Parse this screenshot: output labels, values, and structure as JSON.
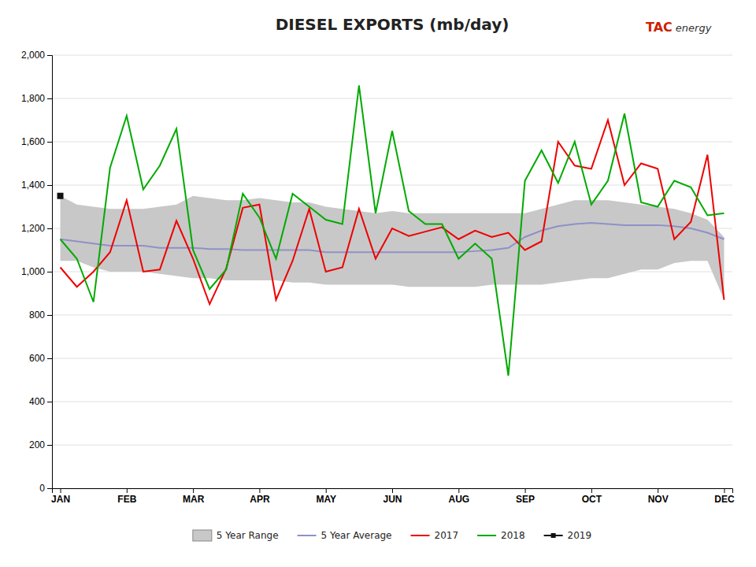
{
  "chart_data": {
    "type": "line",
    "title": "DIESEL EXPORTS (mb/day)",
    "annotations": [
      {
        "text": "TAC",
        "color": "#cc2200"
      },
      {
        "text": "energy",
        "color": "#333333"
      }
    ],
    "categories": [
      "JAN",
      null,
      null,
      null,
      "FEB",
      null,
      null,
      null,
      "MAR",
      null,
      null,
      null,
      "APR",
      null,
      null,
      null,
      "MAY",
      null,
      null,
      null,
      "JUN",
      null,
      null,
      null,
      "AUG",
      null,
      null,
      null,
      "SEP",
      null,
      null,
      null,
      "OCT",
      null,
      null,
      null,
      "NOV",
      null,
      null,
      null,
      "DEC"
    ],
    "ylim": [
      0,
      2000
    ],
    "yticks": [
      0,
      200,
      400,
      600,
      800,
      {
        "value": 1000,
        "label": "1,000"
      },
      {
        "value": 1200,
        "label": "1,200"
      },
      {
        "value": 1400,
        "label": "1,400"
      },
      {
        "value": 1600,
        "label": "1,600"
      },
      {
        "value": 1800,
        "label": "1,800"
      },
      {
        "value": 2000,
        "label": "2,000"
      }
    ],
    "grid": true,
    "legend": "bottom",
    "series": [
      {
        "name": "5 Year Range",
        "type": "area",
        "color": "#c8c8c8",
        "values": [
          1350,
          1310,
          1300,
          1290,
          1290,
          1290,
          1300,
          1310,
          1350,
          1340,
          1330,
          1330,
          1340,
          1330,
          1320,
          1320,
          1300,
          1290,
          1280,
          1270,
          1280,
          1270,
          1270,
          1270,
          1270,
          1270,
          1270,
          1270,
          1270,
          1290,
          1310,
          1330,
          1330,
          1330,
          1320,
          1310,
          1300,
          1290,
          1270,
          1240,
          1160
        ],
        "lower": [
          1050,
          1050,
          1020,
          1000,
          1000,
          1000,
          990,
          980,
          970,
          970,
          960,
          960,
          960,
          960,
          950,
          950,
          940,
          940,
          940,
          940,
          940,
          930,
          930,
          930,
          930,
          930,
          940,
          940,
          940,
          940,
          950,
          960,
          970,
          970,
          990,
          1010,
          1010,
          1040,
          1050,
          1050,
          870
        ]
      },
      {
        "name": "5 Year Average",
        "color": "#9090c8",
        "values": [
          1150,
          1140,
          1130,
          1120,
          1120,
          1120,
          1110,
          1110,
          1110,
          1105,
          1105,
          1100,
          1100,
          1100,
          1100,
          1100,
          1090,
          1090,
          1090,
          1090,
          1090,
          1090,
          1090,
          1090,
          1090,
          1095,
          1100,
          1110,
          1160,
          1190,
          1210,
          1220,
          1225,
          1220,
          1215,
          1215,
          1215,
          1210,
          1200,
          1180,
          1150
        ]
      },
      {
        "name": "2017",
        "color": "#ee0000",
        "values": [
          1020,
          930,
          1000,
          1090,
          1330,
          1000,
          1010,
          1235,
          1060,
          850,
          1015,
          1295,
          1310,
          870,
          1050,
          1290,
          1000,
          1020,
          1290,
          1060,
          1200,
          1165,
          1185,
          1205,
          1150,
          1190,
          1160,
          1180,
          1100,
          1140,
          1600,
          1490,
          1475,
          1700,
          1400,
          1500,
          1475,
          1150,
          1230,
          1540,
          870
        ]
      },
      {
        "name": "2018",
        "color": "#00aa00",
        "values": [
          1150,
          1060,
          860,
          1480,
          1720,
          1380,
          1490,
          1660,
          1100,
          920,
          1010,
          1360,
          1250,
          1060,
          1360,
          1300,
          1240,
          1220,
          1860,
          1270,
          1650,
          1280,
          1220,
          1220,
          1060,
          1130,
          1060,
          520,
          1420,
          1560,
          1410,
          1600,
          1310,
          1420,
          1730,
          1320,
          1300,
          1420,
          1390,
          1260,
          1270
        ]
      },
      {
        "name": "2019",
        "color": "#111111",
        "marker": "square",
        "values": [
          1350,
          null,
          null,
          null,
          null,
          null,
          null,
          null,
          null,
          null,
          null,
          null,
          null,
          null,
          null,
          null,
          null,
          null,
          null,
          null,
          null,
          null,
          null,
          null,
          null,
          null,
          null,
          null,
          null,
          null,
          null,
          null,
          null,
          null,
          null,
          null,
          null,
          null,
          null,
          null,
          null
        ]
      }
    ]
  }
}
